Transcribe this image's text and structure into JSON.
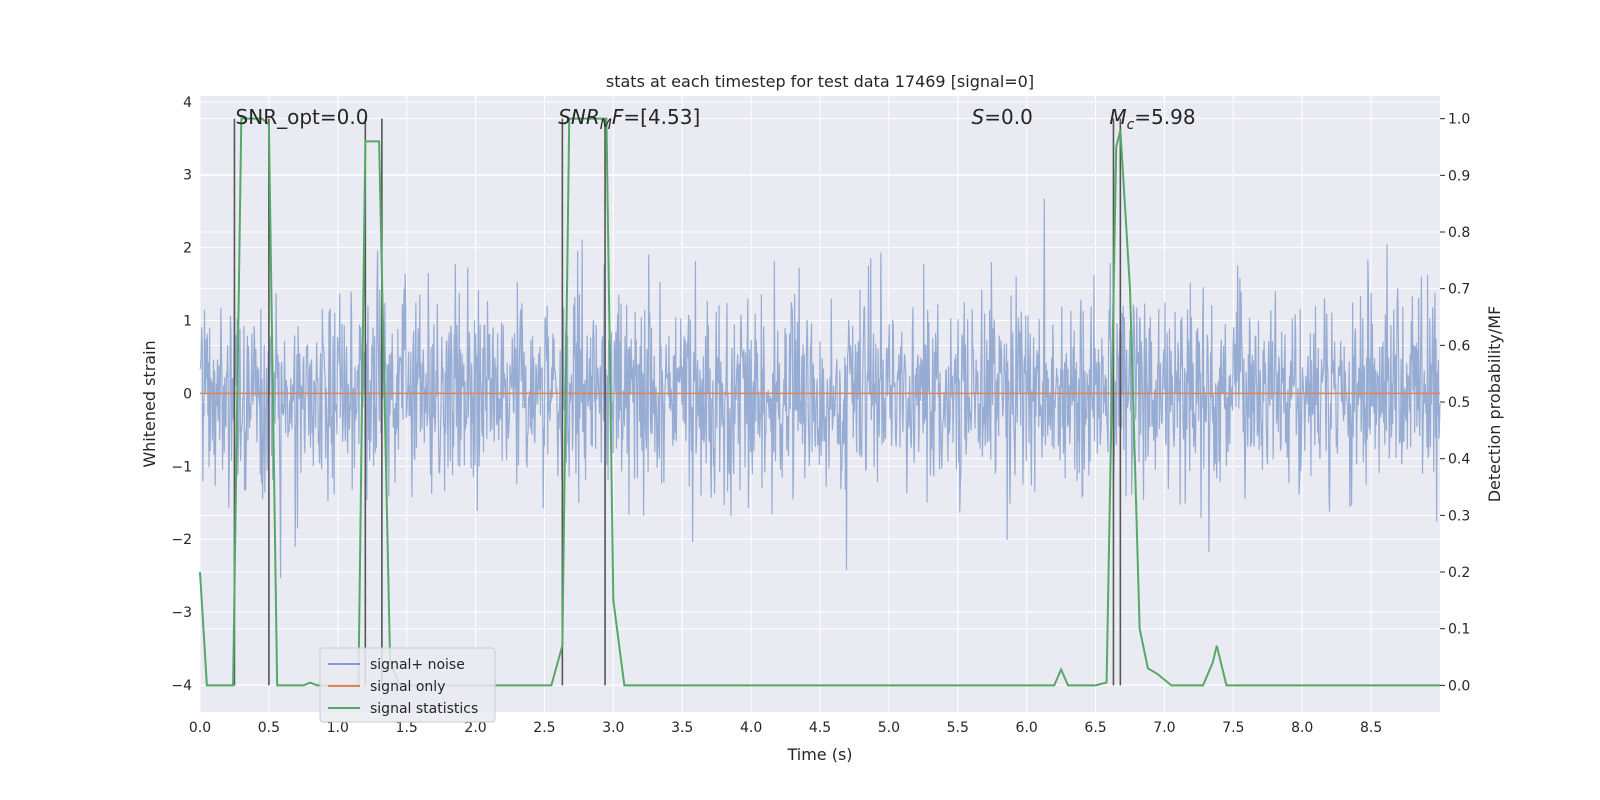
{
  "chart_data": {
    "type": "line",
    "title": "stats at each timestep for test data 17469 [signal=0]",
    "xlabel": "Time (s)",
    "ylabel_left": "Whitened strain",
    "ylabel_right": "Detection probability/MF",
    "xlim": [
      0.0,
      9.0
    ],
    "ylim_left": [
      -4.37,
      4.08
    ],
    "ylim_right": [
      -0.047,
      1.04
    ],
    "x_ticks": [
      "0.0",
      "0.5",
      "1.0",
      "1.5",
      "2.0",
      "2.5",
      "3.0",
      "3.5",
      "4.0",
      "4.5",
      "5.0",
      "5.5",
      "6.0",
      "6.5",
      "7.0",
      "7.5",
      "8.0",
      "8.5"
    ],
    "y_ticks_left": [
      "4",
      "3",
      "2",
      "1",
      "0",
      "−1",
      "−2",
      "−3",
      "−4"
    ],
    "y_ticks_right": [
      "1.0",
      "0.9",
      "0.8",
      "0.7",
      "0.6",
      "0.5",
      "0.4",
      "0.3",
      "0.2",
      "0.1",
      "0.0"
    ],
    "grid": true,
    "legend_position": "lower-left",
    "annotations": [
      {
        "label": "SNR_opt=0.0",
        "x": 0.2,
        "italic_parts": false
      },
      {
        "label": "SNR_MF=[4.53]",
        "x": 2.6,
        "display_base": "SNR",
        "display_sub": "M",
        "display_rest": "F=[4.53]"
      },
      {
        "label": "S=0.0",
        "x": 5.6,
        "display_base": "S",
        "display_rest": "=0.0"
      },
      {
        "label": "M_c=5.98",
        "x": 6.6,
        "display_base": "M",
        "display_sub": "c",
        "display_rest": "=5.98"
      }
    ],
    "vertical_markers_x": [
      0.25,
      0.5,
      1.2,
      1.32,
      2.63,
      2.94,
      6.63,
      6.68
    ],
    "series": [
      {
        "name": "signal+ noise",
        "color": "#7f9acb",
        "axis": "left",
        "style": "noise band, roughly Gaussian between about -2.7 and 3.3 with spikes",
        "envelope_low": -1.7,
        "envelope_high": 1.6
      },
      {
        "name": "signal only",
        "color": "#dd8452",
        "axis": "left",
        "x": [
          0.0,
          9.0
        ],
        "y": [
          0.0,
          0.0
        ]
      },
      {
        "name": "signal statistics",
        "color": "#55a868",
        "axis": "right",
        "x": [
          0.0,
          0.05,
          0.15,
          0.24,
          0.3,
          0.45,
          0.5,
          0.56,
          0.75,
          0.8,
          0.85,
          1.0,
          1.15,
          1.2,
          1.25,
          1.3,
          1.38,
          1.45,
          1.55,
          1.7,
          2.0,
          2.4,
          2.55,
          2.63,
          2.68,
          2.95,
          3.0,
          3.08,
          3.5,
          4.0,
          5.0,
          6.0,
          6.2,
          6.25,
          6.3,
          6.5,
          6.58,
          6.65,
          6.68,
          6.75,
          6.82,
          6.88,
          6.95,
          7.05,
          7.15,
          7.28,
          7.35,
          7.38,
          7.45,
          7.8,
          8.0,
          9.0
        ],
        "y": [
          0.2,
          0.0,
          0.0,
          0.0,
          1.0,
          1.0,
          0.99,
          0.0,
          0.0,
          0.005,
          0.0,
          0.0,
          0.0,
          0.96,
          0.96,
          0.96,
          0.04,
          0.0,
          0.0,
          0.0,
          0.0,
          0.0,
          0.0,
          0.07,
          1.0,
          1.0,
          0.15,
          0.0,
          0.0,
          0.0,
          0.0,
          0.0,
          0.0,
          0.028,
          0.0,
          0.0,
          0.005,
          0.95,
          0.98,
          0.7,
          0.1,
          0.03,
          0.02,
          0.0,
          0.0,
          0.0,
          0.04,
          0.07,
          0.0,
          0.0,
          0.0,
          0.0
        ]
      }
    ]
  }
}
